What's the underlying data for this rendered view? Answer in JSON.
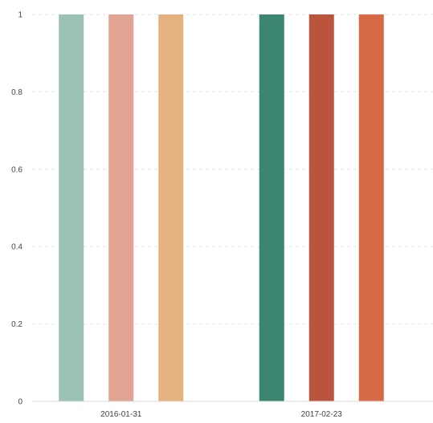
{
  "chart_data": {
    "type": "bar",
    "title": "",
    "xlabel": "",
    "ylabel": "",
    "categories": [
      "2016-01-31",
      "2017-02-23"
    ],
    "ylim": [
      0,
      1
    ],
    "yticks": [
      "0",
      "0.2",
      "0.4",
      "0.6",
      "0.8",
      "1"
    ],
    "ytick_values": [
      0,
      0.2,
      0.4,
      0.6,
      0.8,
      1
    ],
    "grid": true,
    "legend": "none",
    "series": [
      {
        "values": [
          1,
          1
        ],
        "colors": [
          "#9bc2b6",
          "#3c8571"
        ]
      },
      {
        "values": [
          1,
          1
        ],
        "colors": [
          "#e3a593",
          "#b8553c"
        ]
      },
      {
        "values": [
          1,
          1
        ],
        "colors": [
          "#e4b27e",
          "#d66a45"
        ]
      }
    ]
  }
}
